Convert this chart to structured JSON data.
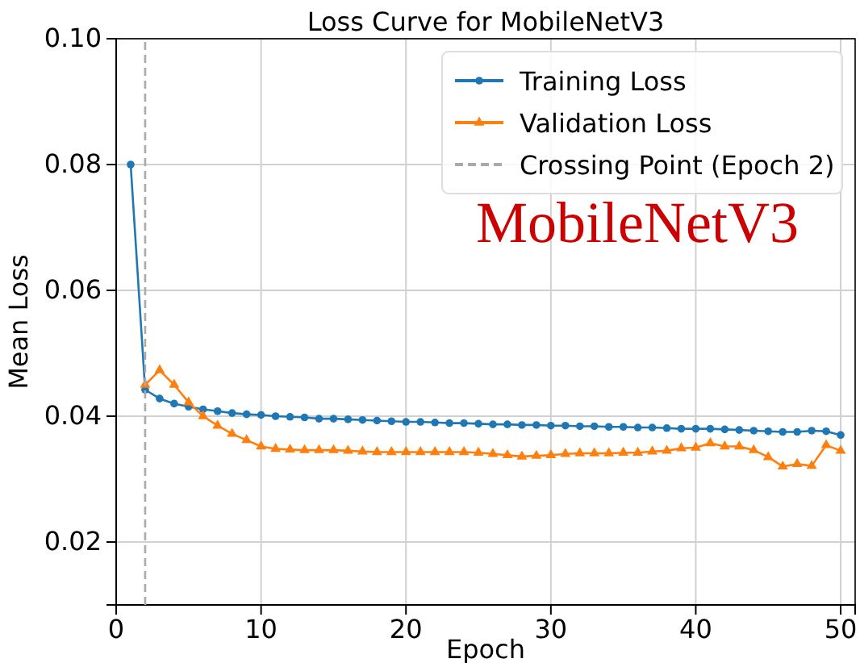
{
  "chart_data": {
    "type": "line",
    "title": "Loss Curve for MobileNetV3",
    "xlabel": "Epoch",
    "ylabel": "Mean Loss",
    "x": [
      1,
      2,
      3,
      4,
      5,
      6,
      7,
      8,
      9,
      10,
      11,
      12,
      13,
      14,
      15,
      16,
      17,
      18,
      19,
      20,
      21,
      22,
      23,
      24,
      25,
      26,
      27,
      28,
      29,
      30,
      31,
      32,
      33,
      34,
      35,
      36,
      37,
      38,
      39,
      40,
      41,
      42,
      43,
      44,
      45,
      46,
      47,
      48,
      49,
      50
    ],
    "series": [
      {
        "name": "Training Loss",
        "color": "#1f77b4",
        "marker": "circle",
        "values": [
          0.08,
          0.0442,
          0.0428,
          0.042,
          0.0415,
          0.0411,
          0.0408,
          0.0405,
          0.0403,
          0.0402,
          0.04,
          0.0399,
          0.0398,
          0.0396,
          0.0396,
          0.0395,
          0.0394,
          0.0393,
          0.0392,
          0.0391,
          0.0391,
          0.039,
          0.0389,
          0.0389,
          0.0388,
          0.0387,
          0.0387,
          0.0386,
          0.0386,
          0.0385,
          0.0385,
          0.0384,
          0.0384,
          0.0383,
          0.0383,
          0.0382,
          0.0382,
          0.0381,
          0.038,
          0.038,
          0.038,
          0.0379,
          0.0378,
          0.0377,
          0.0376,
          0.0375,
          0.0375,
          0.0377,
          0.0376,
          0.037
        ]
      },
      {
        "name": "Validation Loss",
        "color": "#ff7f0e",
        "marker": "triangle",
        "values": [
          null,
          0.045,
          0.0473,
          0.045,
          0.0422,
          0.04,
          0.0385,
          0.0372,
          0.0362,
          0.0352,
          0.0348,
          0.0347,
          0.0346,
          0.0346,
          0.0346,
          0.0345,
          0.0344,
          0.0343,
          0.0343,
          0.0343,
          0.0343,
          0.0343,
          0.0343,
          0.0343,
          0.0342,
          0.034,
          0.0338,
          0.0336,
          0.0337,
          0.0338,
          0.034,
          0.0341,
          0.0341,
          0.0341,
          0.0342,
          0.0342,
          0.0344,
          0.0345,
          0.0349,
          0.035,
          0.0357,
          0.0352,
          0.0352,
          0.0346,
          0.0335,
          0.032,
          0.0324,
          0.0321,
          0.0354,
          0.0345
        ]
      },
      {
        "name": "Crossing Point (Epoch 2)",
        "color": "#aaaaaa",
        "type": "line",
        "marker": "none",
        "line_style": "dashed",
        "x": [
          2,
          2
        ],
        "values": [
          0.01,
          0.1
        ]
      }
    ],
    "annotations": [
      "MobileNetV3"
    ],
    "xlim": [
      0,
      51
    ],
    "ylim": [
      0.01,
      0.1
    ],
    "xticks": [
      0,
      10,
      20,
      30,
      40,
      50
    ],
    "yticks": [
      0.02,
      0.04,
      0.06,
      0.08,
      {
        "value": 0.1,
        "label": "0.10"
      }
    ],
    "grid": true,
    "legend": "top right",
    "line_style": "solid"
  }
}
